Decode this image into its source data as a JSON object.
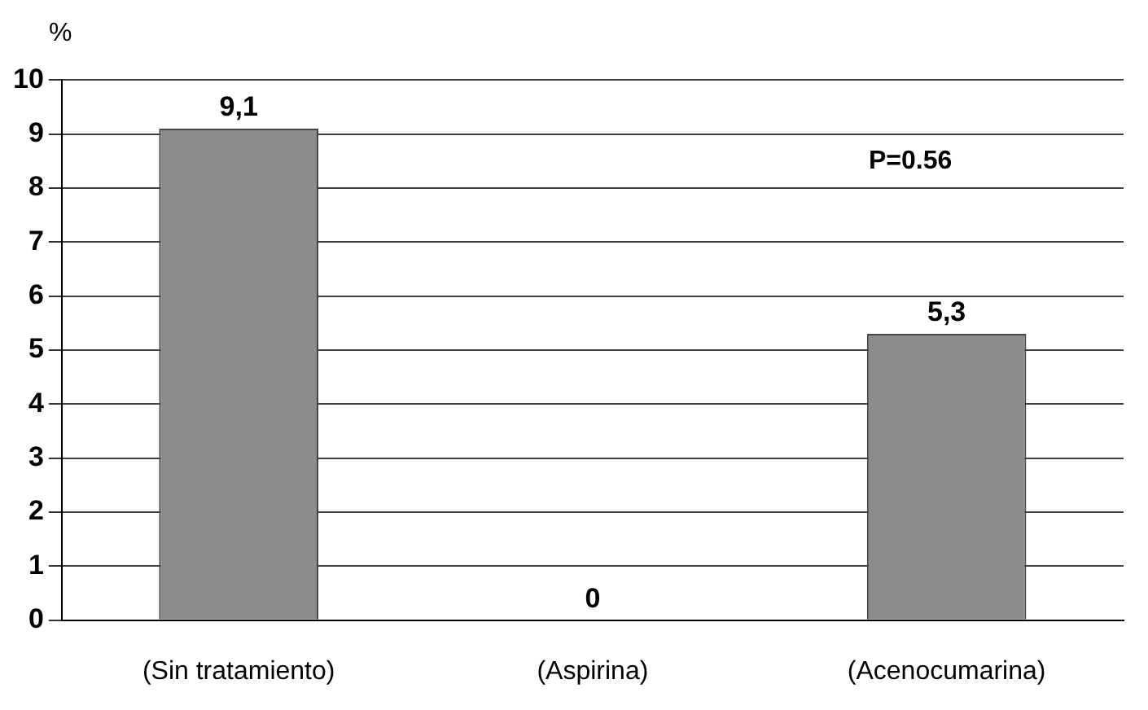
{
  "chart_data": {
    "type": "bar",
    "ylabel": "%",
    "categories": [
      "(Sin tratamiento)",
      "(Aspirina)",
      "(Acenocumarina)"
    ],
    "values": [
      9.1,
      0,
      5.3
    ],
    "color": "#8c8c8c",
    "value_labels": [
      "9,1",
      "0",
      "5,3"
    ],
    "ylim": [
      0,
      10
    ],
    "yticks": [
      0,
      1,
      2,
      3,
      4,
      5,
      6,
      7,
      8,
      9,
      10
    ],
    "grid": "y",
    "annotations": [
      "P=0.56"
    ]
  }
}
